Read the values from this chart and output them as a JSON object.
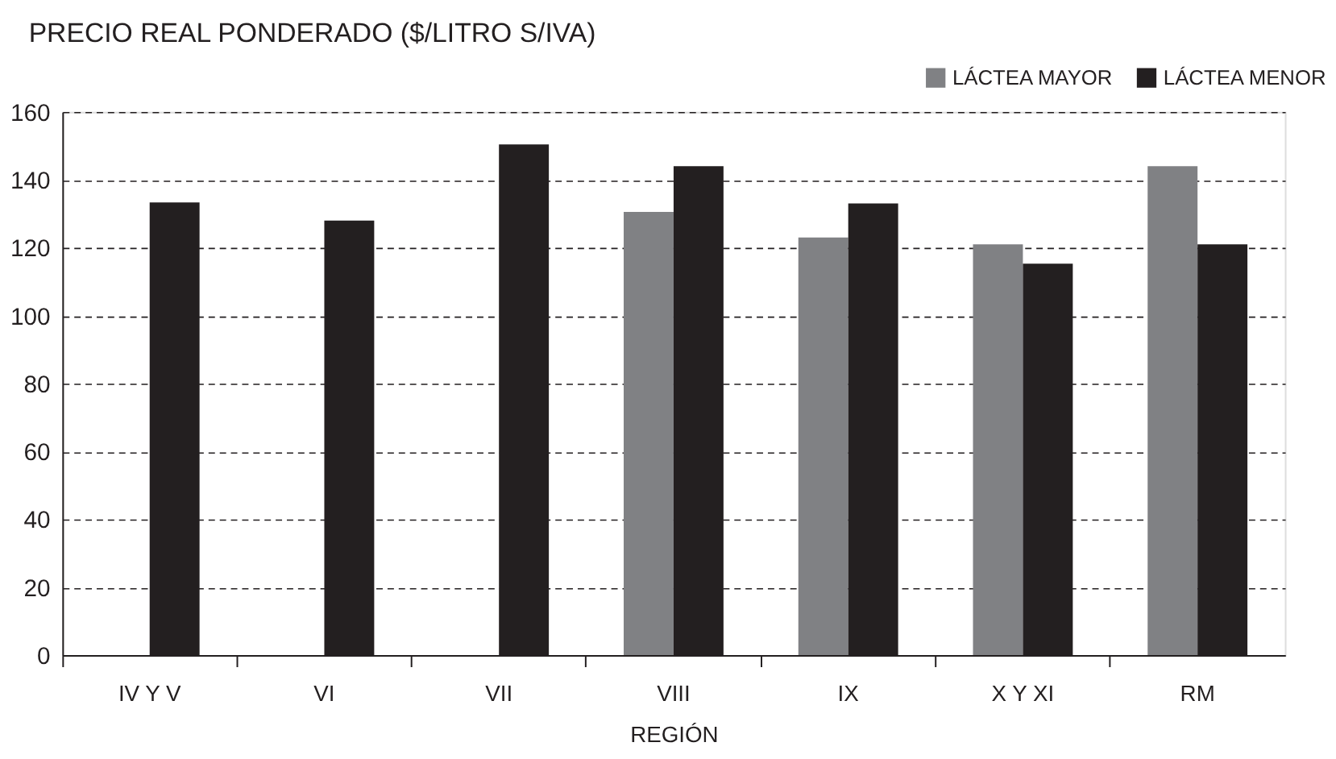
{
  "chart_data": {
    "type": "bar",
    "title": "PRECIO REAL PONDERADO ($/LITRO S/IVA)",
    "xlabel": "REGIÓN",
    "categories": [
      "IV Y V",
      "VI",
      "VII",
      "VIII",
      "IX",
      "X Y XI",
      "RM"
    ],
    "series": [
      {
        "name": "LÁCTEA MAYOR",
        "color": "#808184",
        "values": [
          null,
          null,
          null,
          130.5,
          123,
          121,
          144
        ]
      },
      {
        "name": "LÁCTEA MENOR",
        "color": "#231f20",
        "values": [
          133.3,
          128,
          150.4,
          144,
          133,
          115.3,
          121
        ]
      }
    ],
    "ylim": [
      0,
      160
    ],
    "yticks": [
      0,
      20,
      40,
      60,
      80,
      100,
      120,
      140,
      160
    ],
    "grid": "y",
    "legend": "top right"
  }
}
